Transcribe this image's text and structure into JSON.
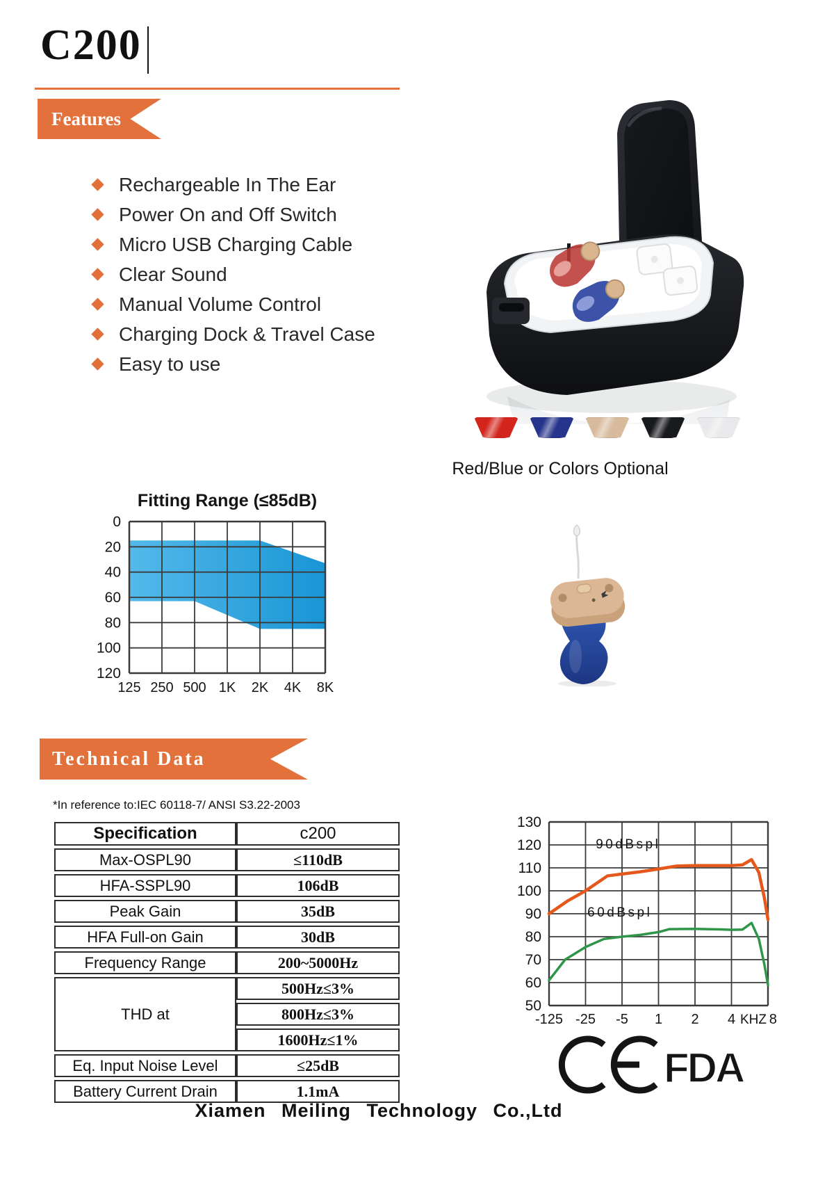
{
  "header": {
    "model": "C200",
    "features_label": "Features",
    "technical_label": "Technical Data"
  },
  "features": [
    "Rechargeable In The Ear",
    "Power On and Off Switch",
    "Micro USB Charging Cable",
    "Clear Sound",
    "Manual Volume Control",
    "Charging Dock & Travel Case",
    "Easy to use"
  ],
  "case": {
    "caption": "Red/Blue or Colors Optional",
    "swatch_colors": [
      "#d3251c",
      "#27348b",
      "#d8bb9d",
      "#191a1e",
      "#e9e9eb"
    ],
    "swatch_names": [
      "red",
      "blue",
      "beige",
      "black",
      "white"
    ]
  },
  "chart_data": [
    {
      "type": "area",
      "title": "Fitting Range (≤85dB)",
      "categories": [
        "125",
        "250",
        "500",
        "1K",
        "2K",
        "4K",
        "8K"
      ],
      "y_ticks": [
        0,
        20,
        40,
        60,
        80,
        100,
        120
      ],
      "ylim": [
        0,
        120
      ],
      "y_inverted": true,
      "upper_edge_dB": [
        [
          0,
          15
        ],
        [
          4,
          15
        ],
        [
          6,
          33
        ]
      ],
      "lower_edge_dB": [
        [
          0,
          63
        ],
        [
          2,
          63
        ],
        [
          4,
          85
        ],
        [
          6,
          85
        ]
      ],
      "fill_left": "#54b9ea",
      "fill_right": "#1996d5"
    },
    {
      "type": "line",
      "x_tick_labels": [
        "-125",
        "-25",
        "-5",
        "1",
        "2",
        "4",
        "8"
      ],
      "x_tick_pos": [
        0,
        1,
        2,
        3,
        4,
        5,
        6.14
      ],
      "x_unit_label": "KHZ",
      "x_unit_pos": 5.6,
      "y_ticks": [
        130,
        120,
        110,
        100,
        90,
        80,
        70,
        60,
        50
      ],
      "ylim": [
        50,
        130
      ],
      "series": [
        {
          "name": "90dBspl",
          "color": "#e5581b",
          "width": 4.5,
          "points": [
            [
              0,
              90
            ],
            [
              0.5,
              95.5
            ],
            [
              1,
              100
            ],
            [
              1.6,
              106.5
            ],
            [
              2,
              107.3
            ],
            [
              2.5,
              108.3
            ],
            [
              3,
              109.5
            ],
            [
              3.5,
              110.8
            ],
            [
              4,
              111
            ],
            [
              4.5,
              111
            ],
            [
              5,
              111
            ],
            [
              5.3,
              111.3
            ],
            [
              5.55,
              113.6
            ],
            [
              5.75,
              108
            ],
            [
              5.9,
              97
            ],
            [
              6,
              87.5
            ]
          ]
        },
        {
          "name": "60dBspl",
          "color": "#2e9549",
          "width": 3.5,
          "points": [
            [
              0,
              61
            ],
            [
              0.44,
              70
            ],
            [
              1,
              75.5
            ],
            [
              1.5,
              79
            ],
            [
              2,
              80
            ],
            [
              2.5,
              80.8
            ],
            [
              3,
              82
            ],
            [
              3.3,
              83.3
            ],
            [
              4,
              83.4
            ],
            [
              4.7,
              83.2
            ],
            [
              5,
              83
            ],
            [
              5.3,
              83.1
            ],
            [
              5.55,
              86
            ],
            [
              5.75,
              79
            ],
            [
              5.9,
              68
            ],
            [
              6,
              59
            ]
          ]
        }
      ],
      "annotations": [
        {
          "text": "90dBspl",
          "x": 1.28,
          "y": 118.5
        },
        {
          "text": "60dBspl",
          "x": 1.05,
          "y": 88.8
        }
      ]
    }
  ],
  "reference_note": "*In reference to:IEC 60118-7/ ANSI S3.22-2003",
  "spec_table": {
    "header": [
      "Specification",
      "c200"
    ],
    "rows": [
      {
        "label": "Max-OSPL90",
        "value": "≤110dB"
      },
      {
        "label": "HFA-SSPL90",
        "value": "106dB"
      },
      {
        "label": "Peak Gain",
        "value": "35dB"
      },
      {
        "label": "HFA Full-on Gain",
        "value": "30dB"
      },
      {
        "label": "Frequency Range",
        "value": "200~5000Hz"
      }
    ],
    "thd": {
      "label": "THD at",
      "values": [
        "500Hz≤3%",
        "800Hz≤3%",
        "1600Hz≤1%"
      ]
    },
    "rows2": [
      {
        "label": "Eq. Input Noise Level",
        "value": "≤25dB"
      },
      {
        "label": "Battery Current Drain",
        "value": "1.1mA"
      }
    ]
  },
  "certifications": [
    "CE",
    "FDA"
  ],
  "footer": "Xiamen Meiling Technology Co.,Ltd"
}
